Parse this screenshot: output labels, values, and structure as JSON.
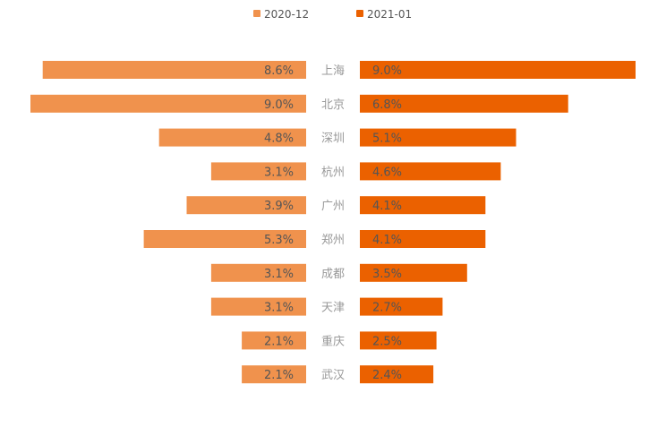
{
  "chart_data": {
    "type": "bar",
    "orientation": "horizontal-butterfly",
    "categories": [
      "上海",
      "北京",
      "深圳",
      "杭州",
      "广州",
      "郑州",
      "成都",
      "天津",
      "重庆",
      "武汉"
    ],
    "series": [
      {
        "name": "2020-12",
        "color": "#f0924d",
        "values": [
          8.6,
          9.0,
          4.8,
          3.1,
          3.9,
          5.3,
          3.1,
          3.1,
          2.1,
          2.1
        ],
        "labels": [
          "8.6%",
          "9.0%",
          "4.8%",
          "3.1%",
          "3.9%",
          "5.3%",
          "3.1%",
          "3.1%",
          "2.1%",
          "2.1%"
        ]
      },
      {
        "name": "2021-01",
        "color": "#eb6100",
        "values": [
          9.0,
          6.8,
          5.1,
          4.6,
          4.1,
          4.1,
          3.5,
          2.7,
          2.5,
          2.4
        ],
        "labels": [
          "9.0%",
          "6.8%",
          "5.1%",
          "4.6%",
          "4.1%",
          "4.1%",
          "3.5%",
          "2.7%",
          "2.5%",
          "2.4%"
        ]
      }
    ],
    "legend": {
      "position": "top-center"
    },
    "grid": false,
    "xlim": [
      0,
      9.0
    ]
  }
}
